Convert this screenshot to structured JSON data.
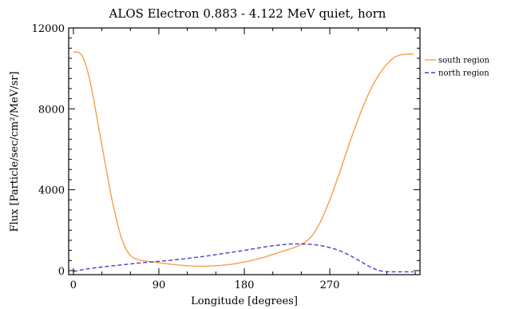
{
  "chart_data": {
    "type": "line",
    "title": "ALOS Electron 0.883 - 4.122 MeV quiet, horn",
    "xlabel": "Longitude [degrees]",
    "ylabel": "Flux [Particle/sec/cm²/MeV/sr]",
    "xlim": [
      -5,
      365
    ],
    "ylim": [
      -200,
      12000
    ],
    "xticks": [
      0,
      90,
      180,
      270
    ],
    "yticks": [
      0,
      4000,
      8000,
      12000
    ],
    "grid": false,
    "legend_position": "right",
    "series": [
      {
        "name": "south region",
        "color": "#f5a04a",
        "style": "solid",
        "x": [
          0,
          5,
          10,
          15,
          20,
          25,
          30,
          35,
          40,
          45,
          50,
          55,
          60,
          65,
          70,
          80,
          90,
          100,
          110,
          120,
          130,
          140,
          150,
          160,
          170,
          180,
          190,
          200,
          210,
          220,
          230,
          240,
          250,
          260,
          270,
          280,
          290,
          300,
          310,
          320,
          330,
          340,
          350,
          358
        ],
        "y": [
          10800,
          10800,
          10550,
          9850,
          8800,
          7500,
          6200,
          4900,
          3650,
          2600,
          1700,
          1100,
          750,
          600,
          520,
          450,
          390,
          330,
          280,
          240,
          220,
          220,
          240,
          280,
          340,
          430,
          530,
          650,
          800,
          950,
          1100,
          1300,
          1650,
          2400,
          3500,
          4800,
          6200,
          7500,
          8650,
          9550,
          10200,
          10600,
          10700,
          10700
        ]
      },
      {
        "name": "north region",
        "color": "#4a3fc0",
        "style": "dashed",
        "x": [
          0,
          10,
          20,
          30,
          40,
          50,
          60,
          70,
          80,
          90,
          100,
          110,
          120,
          130,
          140,
          150,
          160,
          170,
          180,
          190,
          200,
          210,
          220,
          230,
          240,
          250,
          260,
          270,
          280,
          290,
          300,
          310,
          320,
          330,
          340,
          350,
          358
        ],
        "y": [
          -50,
          50,
          120,
          180,
          230,
          280,
          330,
          380,
          420,
          460,
          500,
          550,
          600,
          660,
          720,
          790,
          860,
          930,
          1000,
          1080,
          1160,
          1230,
          1280,
          1320,
          1320,
          1300,
          1240,
          1140,
          990,
          780,
          520,
          250,
          30,
          -50,
          -60,
          -60,
          -60
        ]
      }
    ]
  }
}
